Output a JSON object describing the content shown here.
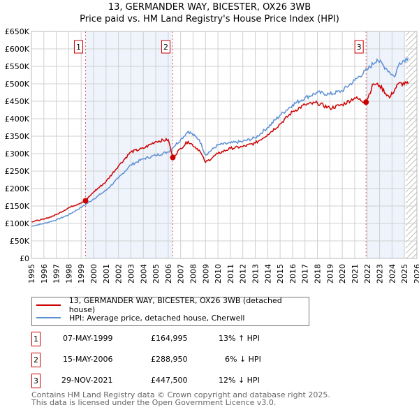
{
  "chart_data": {
    "type": "line",
    "title": "13, GERMANDER WAY, BICESTER, OX26 3WB",
    "subtitle": "Price paid vs. HM Land Registry's House Price Index (HPI)",
    "xlim": [
      1995,
      2026
    ],
    "ylim": [
      0,
      650000
    ],
    "y_ticks": [
      0,
      50000,
      100000,
      150000,
      200000,
      250000,
      300000,
      350000,
      400000,
      450000,
      500000,
      550000,
      600000,
      650000
    ],
    "y_tick_labels": [
      "£0",
      "£50K",
      "£100K",
      "£150K",
      "£200K",
      "£250K",
      "£300K",
      "£350K",
      "£400K",
      "£450K",
      "£500K",
      "£550K",
      "£600K",
      "£650K"
    ],
    "x_ticks": [
      1995,
      1996,
      1997,
      1998,
      1999,
      2000,
      2001,
      2002,
      2003,
      2004,
      2005,
      2006,
      2007,
      2008,
      2009,
      2010,
      2011,
      2012,
      2013,
      2014,
      2015,
      2016,
      2017,
      2018,
      2019,
      2020,
      2021,
      2022,
      2023,
      2024,
      2025,
      2026
    ],
    "grid": true,
    "series": [
      {
        "name": "13, GERMANDER WAY, BICESTER, OX26 3WB (detached house)",
        "color": "#cc0000",
        "x": [
          1995,
          1996,
          1997,
          1998,
          1999.35,
          2000,
          2001,
          2002,
          2003,
          2004,
          2005,
          2006,
          2006.37,
          2007,
          2007.6,
          2008.5,
          2009,
          2010,
          2011,
          2012,
          2013,
          2014,
          2015,
          2016,
          2017,
          2018,
          2019,
          2020,
          2021,
          2021.9,
          2022.5,
          2023,
          2023.8,
          2024.5,
          2025.3
        ],
        "y": [
          105000,
          112000,
          125000,
          145000,
          164995,
          190000,
          220000,
          265000,
          305000,
          315000,
          335000,
          340000,
          288950,
          315000,
          335000,
          310000,
          275000,
          300000,
          315000,
          320000,
          330000,
          355000,
          385000,
          420000,
          440000,
          445000,
          430000,
          440000,
          460000,
          447500,
          500000,
          495000,
          460000,
          500000,
          500000
        ]
      },
      {
        "name": "HPI: Average price, detached house, Cherwell",
        "color": "#5b8fd4",
        "x": [
          1995,
          1996,
          1997,
          1998,
          1999,
          2000,
          2001,
          2002,
          2003,
          2004,
          2005,
          2006,
          2007,
          2007.6,
          2008.5,
          2009,
          2010,
          2011,
          2012,
          2013,
          2014,
          2015,
          2016,
          2017,
          2018,
          2019,
          2020,
          2021,
          2022,
          2022.8,
          2023.5,
          2024.2,
          2024.6,
          2025.3
        ],
        "y": [
          92000,
          100000,
          110000,
          125000,
          146000,
          170000,
          195000,
          230000,
          268000,
          285000,
          295000,
          305000,
          340000,
          364000,
          340000,
          296000,
          325000,
          330000,
          335000,
          345000,
          375000,
          410000,
          440000,
          460000,
          475000,
          470000,
          480000,
          510000,
          540000,
          570000,
          545000,
          520000,
          560000,
          575000
        ]
      }
    ],
    "sales": [
      {
        "label": "1",
        "x": 1999.35,
        "y": 164995,
        "date": "07-MAY-1999",
        "price": "£164,995",
        "hpi": "13% ↑ HPI"
      },
      {
        "label": "2",
        "x": 2006.37,
        "y": 288950,
        "date": "15-MAY-2006",
        "price": "£288,950",
        "hpi": "6% ↓ HPI"
      },
      {
        "label": "3",
        "x": 2021.91,
        "y": 447500,
        "date": "29-NOV-2021",
        "price": "£447,500",
        "hpi": "12% ↓ HPI"
      }
    ],
    "shaded_ranges": [
      [
        1999.35,
        2006.37
      ],
      [
        2021.91,
        2025.0
      ]
    ],
    "forecast_from": 2025.1,
    "legend_position": "below"
  },
  "footer": {
    "line1": "Contains HM Land Registry data © Crown copyright and database right 2025.",
    "line2": "This data is licensed under the Open Government Licence v3.0."
  }
}
